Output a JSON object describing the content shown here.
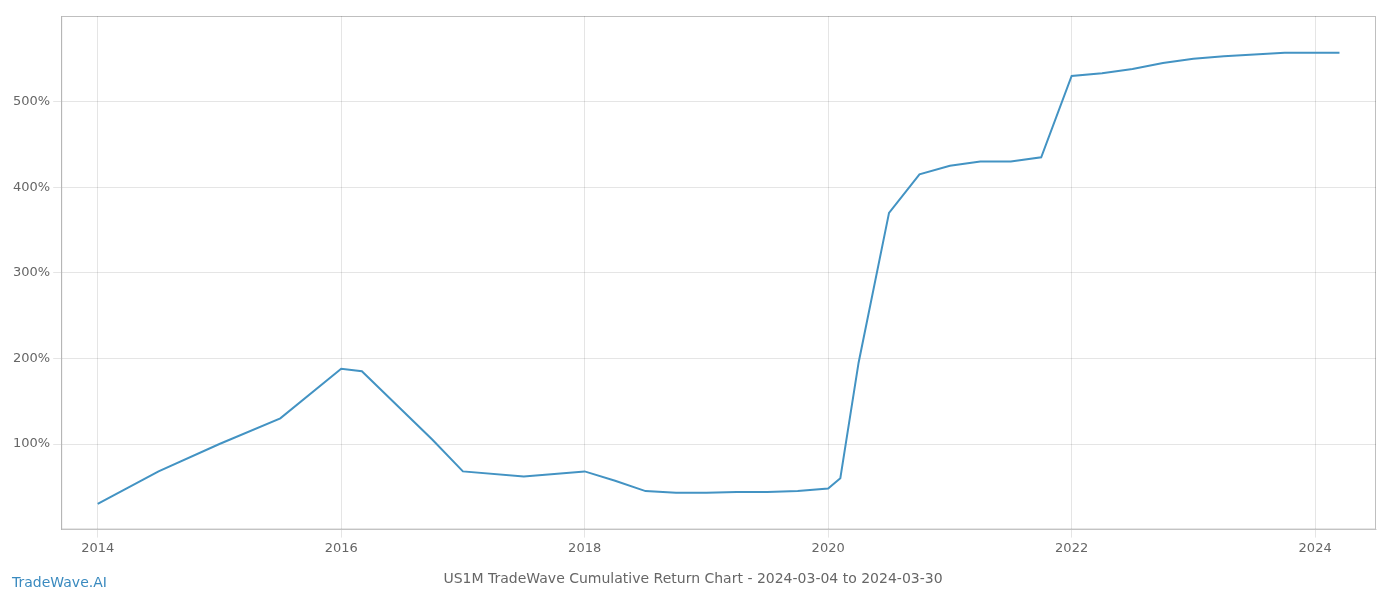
{
  "chart_data": {
    "type": "line",
    "title": "US1M TradeWave Cumulative Return Chart - 2024-03-04 to 2024-03-30",
    "annotations": [
      "TradeWave.AI"
    ],
    "color": "#4393c3",
    "x": [
      2014.0,
      2014.5,
      2015.0,
      2015.5,
      2016.0,
      2016.17,
      2016.75,
      2017.0,
      2017.5,
      2018.0,
      2018.25,
      2018.5,
      2018.75,
      2019.0,
      2019.25,
      2019.5,
      2019.75,
      2020.0,
      2020.1,
      2020.25,
      2020.5,
      2020.75,
      2021.0,
      2021.25,
      2021.5,
      2021.75,
      2022.0,
      2022.25,
      2022.5,
      2022.75,
      2023.0,
      2023.25,
      2023.5,
      2023.75,
      2024.0,
      2024.2
    ],
    "values": [
      30,
      68,
      100,
      130,
      188,
      185,
      105,
      68,
      62,
      68,
      57,
      45,
      43,
      43,
      44,
      44,
      45,
      48,
      60,
      195,
      370,
      415,
      425,
      430,
      430,
      435,
      530,
      533,
      538,
      545,
      550,
      553,
      555,
      557,
      557,
      557
    ],
    "xlim": [
      2013.7,
      2024.5
    ],
    "ylim": [
      0,
      600
    ],
    "xticks": [
      2014,
      2016,
      2018,
      2020,
      2022,
      2024
    ],
    "yticks": [
      {
        "value": 100,
        "label": "100%"
      },
      {
        "value": 200,
        "label": "200%"
      },
      {
        "value": 300,
        "label": "300%"
      },
      {
        "value": 400,
        "label": "400%"
      },
      {
        "value": 500,
        "label": "500%"
      }
    ],
    "grid": true
  }
}
